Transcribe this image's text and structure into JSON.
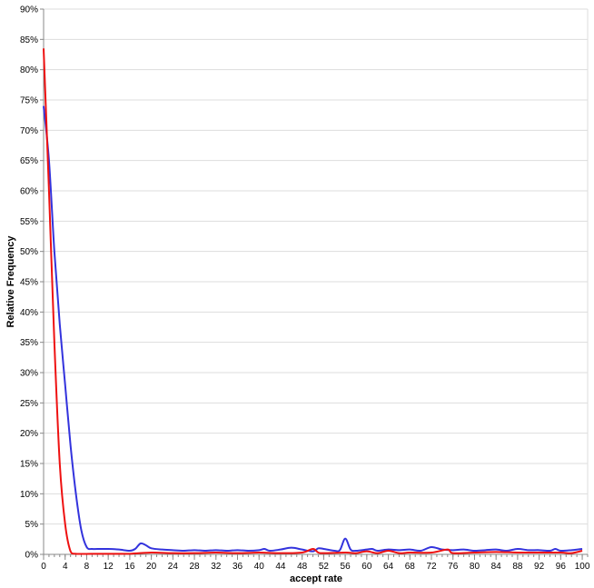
{
  "chart_data": {
    "type": "line",
    "title": "",
    "xlabel": "accept rate",
    "ylabel": "Relative Frequency",
    "xlim": [
      0,
      101
    ],
    "ylim": [
      0,
      90
    ],
    "x_ticks": [
      0,
      4,
      8,
      12,
      16,
      20,
      24,
      28,
      32,
      36,
      40,
      44,
      48,
      52,
      56,
      60,
      64,
      68,
      72,
      76,
      80,
      84,
      88,
      92,
      96,
      100
    ],
    "y_ticks": [
      "0%",
      "5%",
      "10%",
      "15%",
      "20%",
      "25%",
      "30%",
      "35%",
      "40%",
      "45%",
      "50%",
      "55%",
      "60%",
      "65%",
      "70%",
      "75%",
      "80%",
      "85%",
      "90%"
    ],
    "grid": true,
    "series": [
      {
        "color": "#3333dd",
        "points": [
          [
            0,
            74
          ],
          [
            1,
            65
          ],
          [
            2,
            50
          ],
          [
            3,
            38
          ],
          [
            4,
            28
          ],
          [
            5,
            18
          ],
          [
            6,
            10
          ],
          [
            7,
            4
          ],
          [
            8,
            1.2
          ],
          [
            9,
            0.9
          ],
          [
            10,
            0.9
          ],
          [
            12,
            0.9
          ],
          [
            14,
            0.8
          ],
          [
            16,
            0.6
          ],
          [
            17,
            0.9
          ],
          [
            18,
            1.8
          ],
          [
            19,
            1.5
          ],
          [
            20,
            1.0
          ],
          [
            22,
            0.8
          ],
          [
            24,
            0.7
          ],
          [
            26,
            0.6
          ],
          [
            28,
            0.7
          ],
          [
            30,
            0.6
          ],
          [
            32,
            0.7
          ],
          [
            34,
            0.6
          ],
          [
            36,
            0.7
          ],
          [
            38,
            0.6
          ],
          [
            40,
            0.7
          ],
          [
            41,
            0.9
          ],
          [
            42,
            0.6
          ],
          [
            44,
            0.8
          ],
          [
            46,
            1.1
          ],
          [
            48,
            0.8
          ],
          [
            50,
            0.5
          ],
          [
            51,
            1.0
          ],
          [
            52,
            0.9
          ],
          [
            54,
            0.6
          ],
          [
            55,
            0.7
          ],
          [
            56,
            2.6
          ],
          [
            57,
            0.8
          ],
          [
            58,
            0.6
          ],
          [
            60,
            0.8
          ],
          [
            61,
            0.9
          ],
          [
            62,
            0.6
          ],
          [
            64,
            0.8
          ],
          [
            66,
            0.7
          ],
          [
            68,
            0.8
          ],
          [
            70,
            0.6
          ],
          [
            72,
            1.2
          ],
          [
            74,
            0.8
          ],
          [
            76,
            0.7
          ],
          [
            78,
            0.8
          ],
          [
            80,
            0.6
          ],
          [
            82,
            0.7
          ],
          [
            84,
            0.8
          ],
          [
            86,
            0.6
          ],
          [
            88,
            0.9
          ],
          [
            90,
            0.7
          ],
          [
            92,
            0.7
          ],
          [
            94,
            0.6
          ],
          [
            95,
            0.9
          ],
          [
            96,
            0.6
          ],
          [
            98,
            0.7
          ],
          [
            100,
            0.9
          ]
        ]
      },
      {
        "color": "#ee1111",
        "points": [
          [
            0,
            83.5
          ],
          [
            1,
            60
          ],
          [
            2,
            35
          ],
          [
            3,
            15
          ],
          [
            4,
            5
          ],
          [
            5,
            0.5
          ],
          [
            6,
            0.1
          ],
          [
            10,
            0.1
          ],
          [
            12,
            0.1
          ],
          [
            16,
            0.1
          ],
          [
            20,
            0.3
          ],
          [
            24,
            0.2
          ],
          [
            28,
            0.2
          ],
          [
            32,
            0.3
          ],
          [
            36,
            0.2
          ],
          [
            40,
            0.3
          ],
          [
            44,
            0.2
          ],
          [
            48,
            0.3
          ],
          [
            50,
            0.9
          ],
          [
            51,
            0.3
          ],
          [
            52,
            0.2
          ],
          [
            56,
            0.3
          ],
          [
            58,
            0.2
          ],
          [
            60,
            0.5
          ],
          [
            62,
            0.2
          ],
          [
            64,
            0.6
          ],
          [
            66,
            0.2
          ],
          [
            68,
            0.3
          ],
          [
            72,
            0.3
          ],
          [
            75,
            0.8
          ],
          [
            76,
            0.2
          ],
          [
            80,
            0.3
          ],
          [
            84,
            0.4
          ],
          [
            88,
            0.3
          ],
          [
            92,
            0.3
          ],
          [
            96,
            0.3
          ],
          [
            98,
            0.2
          ],
          [
            100,
            0.6
          ]
        ]
      }
    ]
  }
}
